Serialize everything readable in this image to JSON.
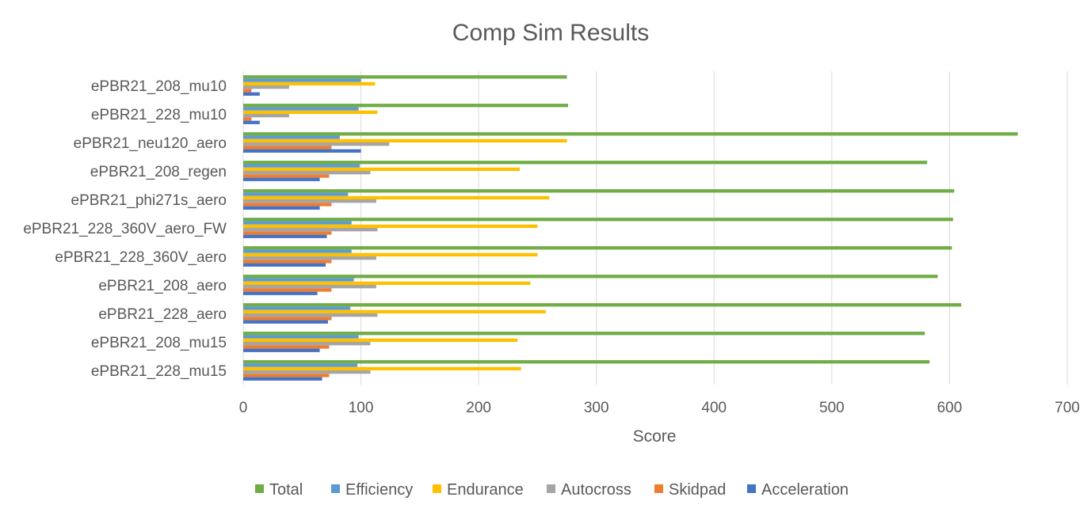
{
  "chart_data": {
    "type": "bar",
    "orientation": "horizontal",
    "title": "Comp Sim Results",
    "xlabel": "Score",
    "ylabel": "",
    "xlim": [
      0,
      700
    ],
    "xticks": [
      "0",
      "100",
      "200",
      "300",
      "400",
      "500",
      "600",
      "700"
    ],
    "grid": true,
    "legend_position": "bottom",
    "categories": [
      "ePBR21_208_mu10",
      "ePBR21_228_mu10",
      "ePBR21_neu120_aero",
      "ePBR21_208_regen",
      "ePBR21_phi271s_aero",
      "ePBR21_228_360V_aero_FW",
      "ePBR21_228_360V_aero",
      "ePBR21_208_aero",
      "ePBR21_228_aero",
      "ePBR21_208_mu15",
      "ePBR21_228_mu15"
    ],
    "series": [
      {
        "name": "Total",
        "color": "#70ad47",
        "values": [
          275,
          276,
          658,
          581,
          604,
          603,
          602,
          590,
          610,
          579,
          583
        ]
      },
      {
        "name": "Efficiency",
        "color": "#5b9bd5",
        "values": [
          100,
          98,
          82,
          99,
          89,
          92,
          92,
          94,
          91,
          98,
          97
        ]
      },
      {
        "name": "Endurance",
        "color": "#ffc000",
        "values": [
          112,
          114,
          275,
          235,
          260,
          250,
          250,
          244,
          257,
          233,
          236
        ]
      },
      {
        "name": "Autocross",
        "color": "#a5a5a5",
        "values": [
          39,
          39,
          124,
          108,
          113,
          114,
          113,
          113,
          114,
          108,
          108
        ]
      },
      {
        "name": "Skidpad",
        "color": "#ed7d31",
        "values": [
          7,
          7,
          75,
          73,
          75,
          75,
          75,
          75,
          75,
          73,
          73
        ]
      },
      {
        "name": "Acceleration",
        "color": "#4472c4",
        "values": [
          14,
          14,
          100,
          65,
          65,
          71,
          70,
          63,
          72,
          65,
          67
        ]
      }
    ]
  }
}
